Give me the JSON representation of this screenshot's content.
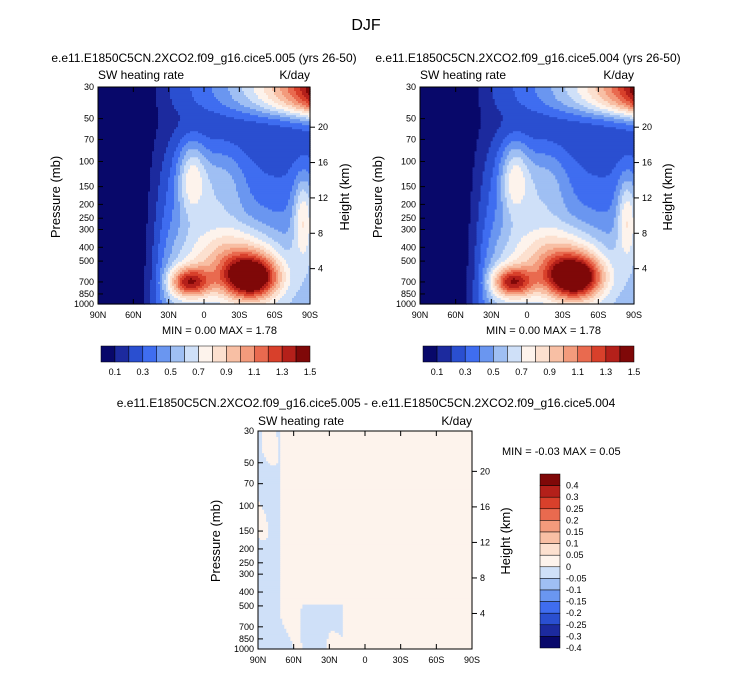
{
  "figure": {
    "title": "DJF"
  },
  "colors": {
    "abs_levels": [
      "#08086a",
      "#1c2a9e",
      "#2a4fd0",
      "#3f6df0",
      "#6a96f0",
      "#9fbff3",
      "#cfe0f8",
      "#fdf3ec",
      "#fce0cf",
      "#f8bfa4",
      "#f39b7c",
      "#e96a4f",
      "#d8402b",
      "#b4201a",
      "#7f0808"
    ],
    "diff_levels": [
      "#08086a",
      "#1c2a9e",
      "#2a4fd0",
      "#3f6df0",
      "#6a96f0",
      "#9fbff3",
      "#cfe0f8",
      "#fdf3ec",
      "#fce0cf",
      "#f8bfa4",
      "#f39b7c",
      "#e96a4f",
      "#d8402b",
      "#b4201a",
      "#7f0808"
    ]
  },
  "chart_data": [
    {
      "type": "heatmap",
      "title": "e.e11.E1850C5CN.2XCO2.f09_g16.cice5.005 (yrs 26-50)",
      "left_label": "SW heating rate",
      "right_label": "K/day",
      "ylabel": "Pressure (mb)",
      "y2label": "Height (km)",
      "x_ticks": [
        "90N",
        "60N",
        "30N",
        "0",
        "30S",
        "60S",
        "90S"
      ],
      "x_values": [
        90,
        60,
        30,
        0,
        -30,
        -60,
        -90
      ],
      "y_ticks": [
        "30",
        "50",
        "70",
        "100",
        "150",
        "200",
        "250",
        "300",
        "400",
        "500",
        "700",
        "850",
        "1000"
      ],
      "y_values": [
        30,
        50,
        70,
        100,
        150,
        200,
        250,
        300,
        400,
        500,
        700,
        850,
        1000
      ],
      "y2_ticks": [
        "20",
        "16",
        "12",
        "8",
        "4"
      ],
      "y2_values": [
        20,
        16,
        12,
        8,
        4
      ],
      "ylim": [
        1000,
        30
      ],
      "min_text": "MIN =  0.00  MAX =  1.78",
      "min": 0.0,
      "max": 1.78,
      "colorbar_labels": [
        "0.1",
        "0.3",
        "0.5",
        "0.7",
        "0.9",
        "1.1",
        "1.3",
        "1.5"
      ],
      "contour_levels": [
        0.1,
        0.2,
        0.3,
        0.4,
        0.5,
        0.6,
        0.7,
        0.8,
        0.9,
        1.0,
        1.1,
        1.2,
        1.3,
        1.4
      ]
    },
    {
      "type": "heatmap",
      "title": "e.e11.E1850C5CN.2XCO2.f09_g16.cice5.004 (yrs 26-50)",
      "left_label": "SW heating rate",
      "right_label": "K/day",
      "ylabel": "Pressure (mb)",
      "y2label": "Height (km)",
      "x_ticks": [
        "90N",
        "60N",
        "30N",
        "0",
        "30S",
        "60S",
        "90S"
      ],
      "x_values": [
        90,
        60,
        30,
        0,
        -30,
        -60,
        -90
      ],
      "y_ticks": [
        "30",
        "50",
        "70",
        "100",
        "150",
        "200",
        "250",
        "300",
        "400",
        "500",
        "700",
        "850",
        "1000"
      ],
      "y_values": [
        30,
        50,
        70,
        100,
        150,
        200,
        250,
        300,
        400,
        500,
        700,
        850,
        1000
      ],
      "y2_ticks": [
        "20",
        "16",
        "12",
        "8",
        "4"
      ],
      "y2_values": [
        20,
        16,
        12,
        8,
        4
      ],
      "ylim": [
        1000,
        30
      ],
      "min_text": "MIN =  0.00  MAX =  1.78",
      "min": 0.0,
      "max": 1.78,
      "colorbar_labels": [
        "0.1",
        "0.3",
        "0.5",
        "0.7",
        "0.9",
        "1.1",
        "1.3",
        "1.5"
      ],
      "contour_levels": [
        0.1,
        0.2,
        0.3,
        0.4,
        0.5,
        0.6,
        0.7,
        0.8,
        0.9,
        1.0,
        1.1,
        1.2,
        1.3,
        1.4
      ]
    },
    {
      "type": "heatmap",
      "title": "e.e11.E1850C5CN.2XCO2.f09_g16.cice5.005 - e.e11.E1850C5CN.2XCO2.f09_g16.cice5.004",
      "left_label": "SW heating rate",
      "right_label": "K/day",
      "ylabel": "Pressure (mb)",
      "y2label": "Height (km)",
      "x_ticks": [
        "90N",
        "60N",
        "30N",
        "0",
        "30S",
        "60S",
        "90S"
      ],
      "x_values": [
        90,
        60,
        30,
        0,
        -30,
        -60,
        -90
      ],
      "y_ticks": [
        "30",
        "50",
        "70",
        "100",
        "150",
        "200",
        "250",
        "300",
        "400",
        "500",
        "700",
        "850",
        "1000"
      ],
      "y_values": [
        30,
        50,
        70,
        100,
        150,
        200,
        250,
        300,
        400,
        500,
        700,
        850,
        1000
      ],
      "y2_ticks": [
        "20",
        "16",
        "12",
        "8",
        "4"
      ],
      "y2_values": [
        20,
        16,
        12,
        8,
        4
      ],
      "ylim": [
        1000,
        30
      ],
      "min_text": "MIN = -0.03  MAX =  0.05",
      "min": -0.03,
      "max": 0.05,
      "colorbar_labels": [
        "0.4",
        "0.3",
        "0.25",
        "0.2",
        "0.15",
        "0.1",
        "0.05",
        "0",
        "-0.05",
        "-0.1",
        "-0.15",
        "-0.2",
        "-0.25",
        "-0.3",
        "-0.4"
      ],
      "contour_levels": [
        -0.4,
        -0.3,
        -0.25,
        -0.2,
        -0.15,
        -0.1,
        -0.05,
        0,
        0.05,
        0.1,
        0.15,
        0.2,
        0.25,
        0.3,
        0.4
      ]
    }
  ]
}
